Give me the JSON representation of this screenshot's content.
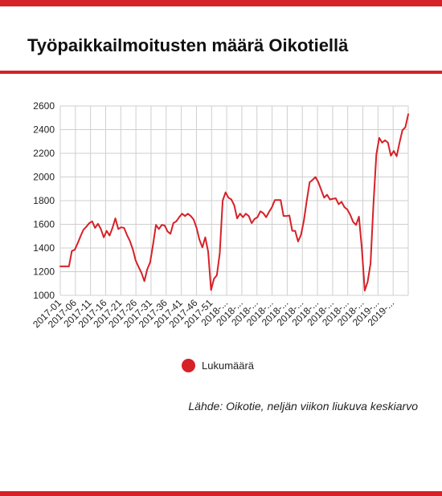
{
  "title": "Työpaikkailmoitusten määrä Oikotiellä",
  "source": "Lähde: Oikotie, neljän viikon liukuva keskiarvo",
  "colors": {
    "accent": "#d62128",
    "line": "#d62128",
    "grid": "#cfcfcf",
    "axis": "#222222"
  },
  "chart_data": {
    "type": "line",
    "title": "Työpaikkailmoitusten määrä Oikotiellä",
    "xlabel": "",
    "ylabel": "",
    "ylim": [
      1000,
      2600
    ],
    "yticks": [
      1000,
      1200,
      1400,
      1600,
      1800,
      2000,
      2200,
      2400,
      2600
    ],
    "grid": true,
    "legend_placement": "bottom",
    "x_tick_labels": [
      "2017-01",
      "2017-06",
      "2017-11",
      "2017-16",
      "2017-21",
      "2017-26",
      "2017-31",
      "2017-36",
      "2017-41",
      "2017-46",
      "2017-51",
      "2018-...",
      "2018-...",
      "2018-...",
      "2018-...",
      "2018-...",
      "2018-...",
      "2018-...",
      "2018-...",
      "2018-...",
      "2018-...",
      "2019-...",
      "2019-..."
    ],
    "series": [
      {
        "name": "Lukumäärä",
        "color": "#d62128",
        "values": [
          1245,
          1245,
          1245,
          1245,
          1375,
          1385,
          1440,
          1500,
          1555,
          1580,
          1610,
          1625,
          1570,
          1605,
          1560,
          1490,
          1545,
          1505,
          1570,
          1650,
          1560,
          1575,
          1570,
          1510,
          1460,
          1390,
          1295,
          1240,
          1190,
          1120,
          1220,
          1280,
          1430,
          1595,
          1560,
          1595,
          1590,
          1540,
          1520,
          1610,
          1625,
          1660,
          1690,
          1670,
          1690,
          1670,
          1640,
          1570,
          1470,
          1405,
          1490,
          1370,
          1045,
          1140,
          1170,
          1355,
          1800,
          1870,
          1825,
          1810,
          1760,
          1650,
          1690,
          1660,
          1690,
          1670,
          1610,
          1645,
          1660,
          1710,
          1695,
          1660,
          1705,
          1745,
          1805,
          1805,
          1805,
          1670,
          1670,
          1675,
          1545,
          1545,
          1455,
          1510,
          1630,
          1800,
          1955,
          1975,
          2000,
          1955,
          1890,
          1825,
          1850,
          1810,
          1815,
          1820,
          1770,
          1790,
          1745,
          1725,
          1680,
          1620,
          1595,
          1665,
          1395,
          1040,
          1115,
          1270,
          1770,
          2190,
          2330,
          2290,
          2310,
          2290,
          2180,
          2220,
          2175,
          2290,
          2395,
          2420,
          2530
        ]
      }
    ]
  }
}
